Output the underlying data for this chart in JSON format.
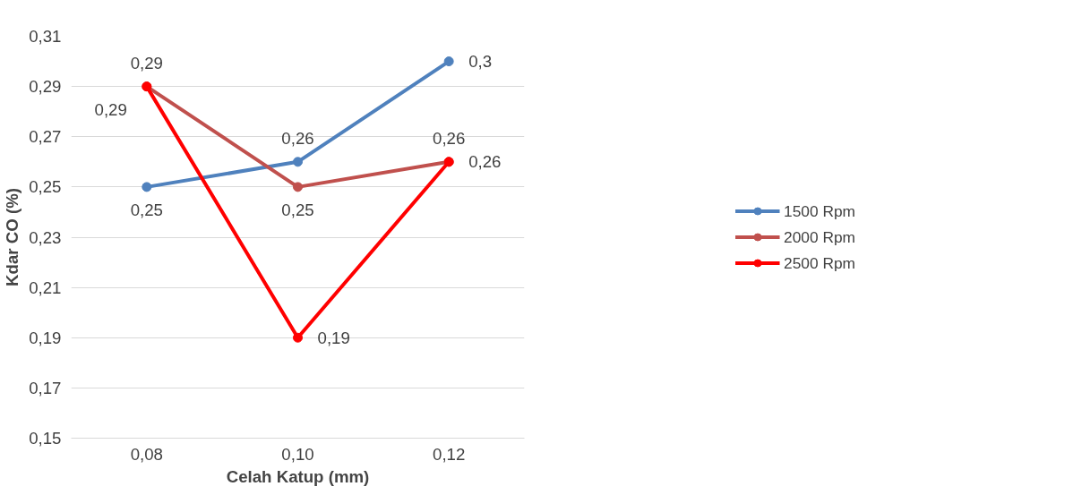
{
  "chart_data": {
    "type": "line",
    "xlabel": "Celah Katup (mm)",
    "ylabel": "Kdar CO (%)",
    "categories": [
      "0,08",
      "0,10",
      "0,12"
    ],
    "ylim": [
      0.15,
      0.31
    ],
    "yticks": [
      {
        "value": 0.15,
        "label": "0,15"
      },
      {
        "value": 0.17,
        "label": "0,17"
      },
      {
        "value": 0.19,
        "label": "0,19"
      },
      {
        "value": 0.21,
        "label": "0,21"
      },
      {
        "value": 0.23,
        "label": "0,23"
      },
      {
        "value": 0.25,
        "label": "0,25"
      },
      {
        "value": 0.27,
        "label": "0,27"
      },
      {
        "value": 0.29,
        "label": "0,29"
      },
      {
        "value": 0.31,
        "label": "0,31"
      }
    ],
    "grid": "y",
    "legend": "right",
    "marker": "circle",
    "line_style": "solid",
    "series": [
      {
        "name": "1500 Rpm",
        "color": "#4f81bd",
        "values": [
          0.25,
          0.26,
          0.3
        ],
        "value_labels": [
          "0,25",
          "0,26",
          "0,3"
        ]
      },
      {
        "name": "2000 Rpm",
        "color": "#c0504d",
        "values": [
          0.29,
          0.25,
          0.26
        ],
        "value_labels": [
          "0,29",
          "0,25",
          "0,26"
        ]
      },
      {
        "name": "2500 Rpm",
        "color": "#ff0000",
        "values": [
          0.29,
          0.19,
          0.26
        ],
        "value_labels": [
          "0,29",
          "0,19",
          "0,26"
        ]
      }
    ]
  }
}
